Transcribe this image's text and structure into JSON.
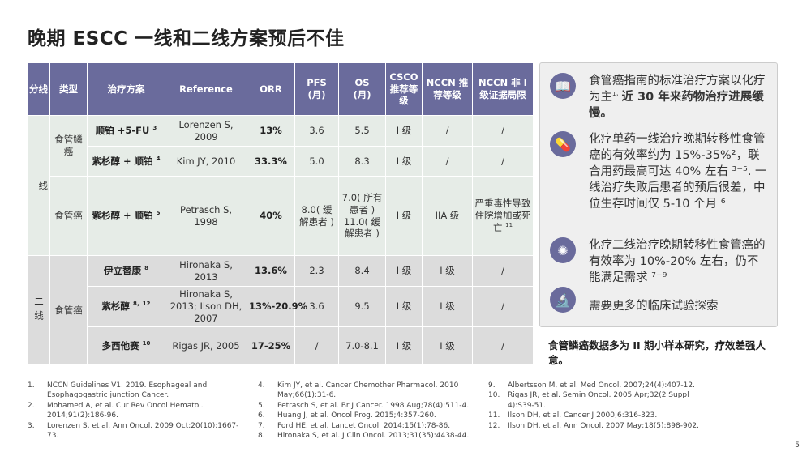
{
  "title": "晚期 ESCC 一线和二线方案预后不佳",
  "table": {
    "headers": [
      "分线",
      "类型",
      "治疗方案",
      "Reference",
      "ORR",
      "PFS\n(月)",
      "OS\n(月)",
      "CSCO推荐等级",
      "NCCN 推荐等级",
      "NCCN 非 I 级证据局限"
    ],
    "line1": "一线",
    "line2": "二线",
    "type_squamous": "食管鳞癌",
    "type_eso": "食管癌",
    "type_eso2": "食管癌",
    "rows": [
      {
        "regimen": "顺铂 +5-FU",
        "sup": "3",
        "ref": "Lorenzen S, 2009",
        "orr": "13%",
        "pfs": "3.6",
        "os": "5.5",
        "csco": "I 级",
        "nccn": "/",
        "limit": "/"
      },
      {
        "regimen": "紫杉醇 + 顺铂",
        "sup": "4",
        "ref": "Kim JY, 2010",
        "orr": "33.3%",
        "pfs": "5.0",
        "os": "8.3",
        "csco": "I 级",
        "nccn": "/",
        "limit": "/"
      },
      {
        "regimen": "紫杉醇 + 顺铂",
        "sup": "5",
        "ref": "Petrasch S, 1998",
        "orr": "40%",
        "pfs": "8.0( 缓解患者 )",
        "os": "7.0( 所有患者 ) 11.0( 缓解患者 )",
        "csco": "I 级",
        "nccn": "IIA 级",
        "limit": "严重毒性导致住院增加或死亡",
        "limit_sup": "11"
      },
      {
        "regimen": "伊立替康",
        "sup": "8",
        "ref": "Hironaka S, 2013",
        "orr": "13.6%",
        "pfs": "2.3",
        "os": "8.4",
        "csco": "I 级",
        "nccn": "I 级",
        "limit": "/"
      },
      {
        "regimen": "紫杉醇",
        "sup": "8，12",
        "ref": "Hironaka S, 2013; Ilson DH, 2007",
        "orr": "13%-20.9%",
        "pfs": "3.6",
        "os": "9.5",
        "csco": "I 级",
        "nccn": "I 级",
        "limit": "/"
      },
      {
        "regimen": "多西他赛",
        "sup": "10",
        "ref": "Rigas JR, 2005",
        "orr": "17-25%",
        "pfs": "/",
        "os": "7.0-8.1",
        "csco": "I 级",
        "nccn": "I 级",
        "limit": "/"
      }
    ]
  },
  "panel": {
    "items": [
      {
        "icon": "book-icon",
        "text": "食管癌指南的标准治疗方案以化疗为主",
        "sup": "1，",
        "bold": "近 30 年来药物治疗进展缓慢。"
      },
      {
        "icon": "pills-icon",
        "text": "化疗单药一线治疗晚期转移性食管癌的有效率约为 15%-35%²，联合用药最高可达 40% 左右 ³⁻⁵. 一线治疗失败后患者的预后很差，中位生存时间仅 5-10 个月 ⁶"
      },
      {
        "icon": "virus-icon",
        "text": "化疗二线治疗晚期转移性食管癌的有效率为 10%-20% 左右，仍不能满足需求 ⁷⁻⁹"
      },
      {
        "icon": "microscope-icon",
        "text": "需要更多的临床试验探索"
      }
    ]
  },
  "note": "食管鳞癌数据多为 II 期小样本研究，疗效差强人意。",
  "references": [
    {
      "n": "1.",
      "t": "NCCN Guidelines V1. 2019. Esophageal and Esophagogastric junction Cancer."
    },
    {
      "n": "2.",
      "t": "Mohamed A, et al. Cur Rev Oncol Hematol. 2014;91(2):186-96."
    },
    {
      "n": "3.",
      "t": "Lorenzen S, et al. Ann Oncol. 2009 Oct;20(10):1667-73."
    },
    {
      "n": "4.",
      "t": "Kim JY, et al. Cancer Chemother Pharmacol. 2010 May;66(1):31-6."
    },
    {
      "n": "5.",
      "t": "Petrasch S, et al. Br J Cancer. 1998 Aug;78(4):511-4."
    },
    {
      "n": "6.",
      "t": "Huang J, et al. Oncol Prog. 2015;4:357-260."
    },
    {
      "n": "7.",
      "t": "Ford HE, et al. Lancet Oncol. 2014;15(1):78-86."
    },
    {
      "n": "8.",
      "t": "Hironaka S, et al. J Clin Oncol. 2013;31(35):4438-44."
    },
    {
      "n": "9.",
      "t": "Albertsson M, et al. Med Oncol. 2007;24(4):407-12."
    },
    {
      "n": "10.",
      "t": "Rigas JR, et al. Semin Oncol. 2005 Apr;32(2 Suppl 4):S39-51."
    },
    {
      "n": "11.",
      "t": "Ilson DH,  et al. Cancer J 2000;6:316-323."
    },
    {
      "n": "12.",
      "t": "Ilson DH, et al. Ann Oncol. 2007 May;18(5):898-902."
    }
  ],
  "page_number": "5",
  "colors": {
    "header": "#6a6b9c",
    "first_line_rows": "#e6ece7",
    "second_line_rows": "#dcdcdc"
  }
}
